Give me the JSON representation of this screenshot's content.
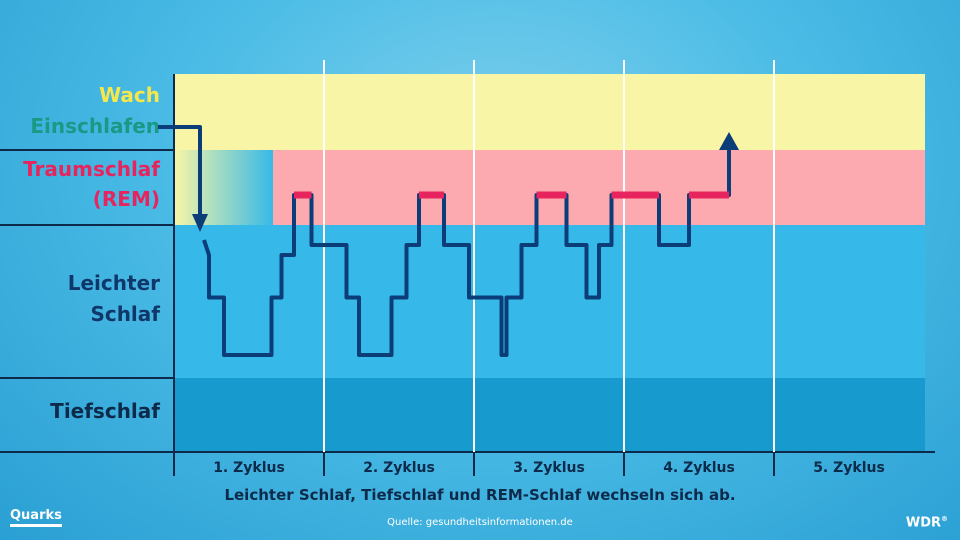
{
  "chart_data": {
    "type": "line",
    "stages": [
      {
        "name": "Wach",
        "color": "#f6e84a"
      },
      {
        "name": "Einschlafen",
        "color": "#1a9a86"
      },
      {
        "name": "Traumschlaf",
        "color": "#e8245e"
      },
      {
        "name": "(REM)",
        "color": "#e8245e"
      },
      {
        "name": "Leichter",
        "color": "#10376a"
      },
      {
        "name": "Schlaf",
        "color": "#10376a"
      },
      {
        "name": "Tiefschlaf",
        "color": "#0d2a4a"
      }
    ],
    "cycles": [
      "1. Zyklus",
      "2. Zyklus",
      "3. Zyklus",
      "4. Zyklus",
      "5. Zyklus"
    ],
    "hypnogram": [
      {
        "t": 0.6,
        "d": 3.3
      },
      {
        "t": 0.7,
        "d": 3.6
      },
      {
        "t": 0.7,
        "d": 4.45
      },
      {
        "t": 1.0,
        "d": 4.45
      },
      {
        "t": 1.0,
        "d": 5.6
      },
      {
        "t": 1.95,
        "d": 5.6
      },
      {
        "t": 1.95,
        "d": 4.45
      },
      {
        "t": 2.15,
        "d": 4.45
      },
      {
        "t": 2.15,
        "d": 3.6
      },
      {
        "t": 2.4,
        "d": 3.6
      },
      {
        "t": 2.4,
        "d": 2.4
      },
      {
        "t": 2.75,
        "d": 2.4
      },
      {
        "t": 2.75,
        "d": 3.4
      },
      {
        "t": 3.45,
        "d": 3.4
      },
      {
        "t": 3.45,
        "d": 4.45
      },
      {
        "t": 3.7,
        "d": 4.45
      },
      {
        "t": 3.7,
        "d": 5.6
      },
      {
        "t": 4.35,
        "d": 5.6
      },
      {
        "t": 4.35,
        "d": 4.45
      },
      {
        "t": 4.65,
        "d": 4.45
      },
      {
        "t": 4.65,
        "d": 3.4
      },
      {
        "t": 4.9,
        "d": 3.4
      },
      {
        "t": 4.9,
        "d": 2.4
      },
      {
        "t": 5.4,
        "d": 2.4
      },
      {
        "t": 5.4,
        "d": 3.4
      },
      {
        "t": 5.9,
        "d": 3.4
      },
      {
        "t": 5.9,
        "d": 4.45
      },
      {
        "t": 6.55,
        "d": 4.45
      },
      {
        "t": 6.55,
        "d": 5.6
      },
      {
        "t": 6.65,
        "d": 5.6
      },
      {
        "t": 6.65,
        "d": 4.45
      },
      {
        "t": 6.95,
        "d": 4.45
      },
      {
        "t": 6.95,
        "d": 3.4
      },
      {
        "t": 7.25,
        "d": 3.4
      },
      {
        "t": 7.25,
        "d": 2.4
      },
      {
        "t": 7.85,
        "d": 2.4
      },
      {
        "t": 7.85,
        "d": 3.4
      },
      {
        "t": 8.25,
        "d": 3.4
      },
      {
        "t": 8.25,
        "d": 4.45
      },
      {
        "t": 8.5,
        "d": 4.45
      },
      {
        "t": 8.5,
        "d": 3.4
      },
      {
        "t": 8.75,
        "d": 3.4
      },
      {
        "t": 8.75,
        "d": 2.4
      },
      {
        "t": 9.7,
        "d": 2.4
      },
      {
        "t": 9.7,
        "d": 3.4
      },
      {
        "t": 10.3,
        "d": 3.4
      },
      {
        "t": 10.3,
        "d": 2.4
      },
      {
        "t": 11.1,
        "d": 2.4
      },
      {
        "t": 11.1,
        "d": 1.5
      }
    ],
    "rem_segments": [
      [
        2.4,
        2.75
      ],
      [
        4.9,
        5.4
      ],
      [
        7.25,
        7.85
      ],
      [
        8.75,
        9.7
      ],
      [
        10.3,
        11.1
      ]
    ],
    "caption": "Leichter Schlaf, Tiefschlaf und REM-Schlaf wechseln sich ab.",
    "source": "Quelle: gesundheitsinformationen.de"
  },
  "branding": {
    "left_logo": "Quarks",
    "right_logo": "WDR"
  }
}
